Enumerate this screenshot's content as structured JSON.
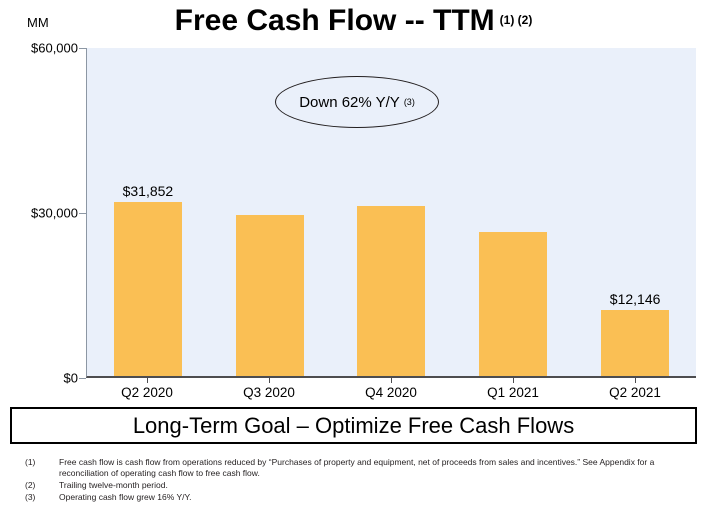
{
  "title": {
    "text": "Free Cash Flow -- TTM",
    "superscript": "(1) (2)"
  },
  "units_label": "MM",
  "annotation": {
    "text": "Down 62% Y/Y",
    "superscript": "(3)"
  },
  "banner": "Long-Term Goal – Optimize Free Cash Flows",
  "footnotes": [
    {
      "num": "(1)",
      "text": "Free cash flow is cash flow from operations reduced by “Purchases of property and equipment, net of proceeds from sales and incentives.” See Appendix for a reconciliation of operating cash flow to free cash flow."
    },
    {
      "num": "(2)",
      "text": "Trailing twelve-month period."
    },
    {
      "num": "(3)",
      "text": "Operating cash flow grew 16% Y/Y."
    }
  ],
  "chart_data": {
    "type": "bar",
    "title": "Free Cash Flow -- TTM",
    "ylabel": "MM",
    "categories": [
      "Q2 2020",
      "Q3 2020",
      "Q4 2020",
      "Q1 2021",
      "Q2 2021"
    ],
    "values": [
      31852,
      29465,
      31020,
      26410,
      12146
    ],
    "bar_labels": [
      "$31,852",
      "",
      "",
      "",
      "$12,146"
    ],
    "ylim": [
      0,
      60000
    ],
    "yticks": [
      {
        "value": 0,
        "label": "$0"
      },
      {
        "value": 30000,
        "label": "$30,000"
      },
      {
        "value": 60000,
        "label": "$60,000"
      }
    ],
    "grid": false,
    "legend": "none",
    "annotation": "Down 62% Y/Y (3)",
    "bar_color": "#FABF54",
    "plot_bg": "#EAF0FA"
  }
}
